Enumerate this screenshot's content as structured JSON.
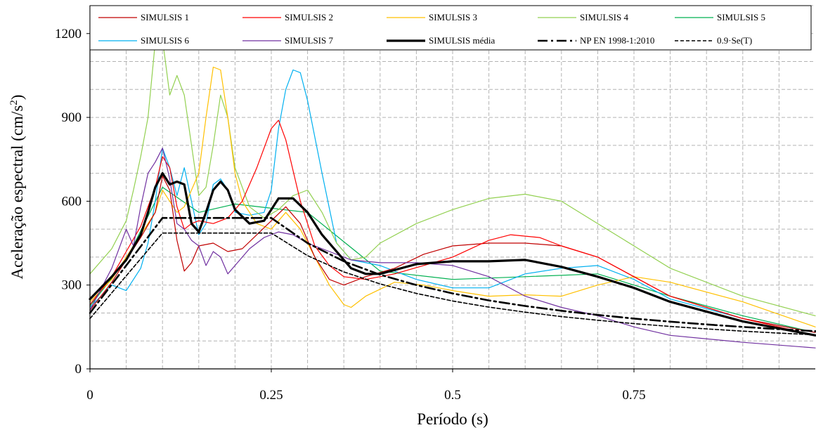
{
  "chart_data": {
    "type": "line",
    "xlabel": "Período (s)",
    "ylabel": "Aceleração espectral (cm/s²)",
    "xlim": [
      0,
      1.0
    ],
    "ylim": [
      0,
      1300
    ],
    "x_ticks": [
      0,
      0.25,
      0.5,
      0.75
    ],
    "x_tick_labels": [
      "0",
      "0.25",
      "0.5",
      "0.75"
    ],
    "y_ticks": [
      0,
      300,
      600,
      900,
      1200
    ],
    "y_tick_labels": [
      "0",
      "300",
      "600",
      "900",
      "1200"
    ],
    "grid": true,
    "legend_position": "top",
    "series": [
      {
        "name": "SIMULSIS 1",
        "color": "#c00000",
        "width": 1.2,
        "dash": "",
        "x": [
          0,
          0.03,
          0.05,
          0.07,
          0.09,
          0.1,
          0.11,
          0.12,
          0.13,
          0.14,
          0.15,
          0.17,
          0.19,
          0.21,
          0.23,
          0.25,
          0.27,
          0.29,
          0.31,
          0.33,
          0.35,
          0.38,
          0.42,
          0.46,
          0.5,
          0.55,
          0.6,
          0.65,
          0.7,
          0.75,
          0.8,
          0.9,
          1.0
        ],
        "y": [
          210,
          310,
          390,
          470,
          560,
          690,
          640,
          460,
          350,
          380,
          440,
          450,
          420,
          430,
          480,
          530,
          580,
          520,
          400,
          320,
          300,
          330,
          360,
          410,
          440,
          450,
          450,
          440,
          400,
          330,
          260,
          180,
          130
        ]
      },
      {
        "name": "SIMULSIS 2",
        "color": "#ff0000",
        "width": 1.2,
        "dash": "",
        "x": [
          0,
          0.03,
          0.05,
          0.07,
          0.09,
          0.1,
          0.11,
          0.12,
          0.13,
          0.14,
          0.15,
          0.17,
          0.19,
          0.21,
          0.23,
          0.25,
          0.26,
          0.27,
          0.29,
          0.31,
          0.33,
          0.35,
          0.38,
          0.42,
          0.46,
          0.5,
          0.55,
          0.58,
          0.62,
          0.65,
          0.7,
          0.75,
          0.8,
          0.9,
          1.0
        ],
        "y": [
          230,
          330,
          420,
          510,
          650,
          760,
          720,
          580,
          500,
          520,
          530,
          520,
          540,
          600,
          720,
          860,
          890,
          820,
          600,
          440,
          370,
          330,
          320,
          340,
          370,
          400,
          460,
          480,
          470,
          440,
          400,
          330,
          260,
          180,
          120
        ]
      },
      {
        "name": "SIMULSIS 3",
        "color": "#ffc000",
        "width": 1.2,
        "dash": "",
        "x": [
          0,
          0.03,
          0.05,
          0.07,
          0.09,
          0.1,
          0.11,
          0.12,
          0.13,
          0.15,
          0.16,
          0.17,
          0.18,
          0.19,
          0.2,
          0.21,
          0.23,
          0.25,
          0.27,
          0.29,
          0.31,
          0.33,
          0.35,
          0.36,
          0.38,
          0.42,
          0.46,
          0.5,
          0.55,
          0.6,
          0.65,
          0.7,
          0.75,
          0.8,
          0.9,
          1.0
        ],
        "y": [
          240,
          320,
          400,
          480,
          560,
          640,
          600,
          560,
          580,
          700,
          900,
          1080,
          1070,
          900,
          700,
          600,
          520,
          500,
          560,
          500,
          400,
          300,
          230,
          220,
          260,
          310,
          300,
          280,
          260,
          265,
          260,
          300,
          330,
          310,
          240,
          150
        ]
      },
      {
        "name": "SIMULSIS 4",
        "color": "#92d050",
        "width": 1.2,
        "dash": "",
        "x": [
          0,
          0.03,
          0.05,
          0.06,
          0.07,
          0.08,
          0.09,
          0.095,
          0.1,
          0.11,
          0.12,
          0.13,
          0.14,
          0.15,
          0.16,
          0.17,
          0.18,
          0.19,
          0.2,
          0.22,
          0.24,
          0.26,
          0.28,
          0.3,
          0.32,
          0.34,
          0.36,
          0.38,
          0.4,
          0.45,
          0.5,
          0.55,
          0.6,
          0.65,
          0.7,
          0.75,
          0.8,
          0.9,
          1.0
        ],
        "y": [
          340,
          430,
          530,
          640,
          760,
          900,
          1170,
          1200,
          1180,
          980,
          1050,
          980,
          800,
          620,
          650,
          800,
          980,
          900,
          720,
          580,
          540,
          570,
          620,
          640,
          560,
          450,
          390,
          400,
          450,
          520,
          570,
          610,
          625,
          600,
          520,
          440,
          360,
          260,
          190
        ]
      },
      {
        "name": "SIMULSIS 5",
        "color": "#00b050",
        "width": 1.2,
        "dash": "",
        "x": [
          0,
          0.05,
          0.1,
          0.15,
          0.2,
          0.3,
          0.4,
          0.5,
          0.6,
          0.7,
          0.8,
          0.9,
          1.0
        ],
        "y": [
          225,
          390,
          650,
          560,
          590,
          560,
          350,
          320,
          330,
          340,
          260,
          190,
          130
        ]
      },
      {
        "name": "SIMULSIS 6",
        "color": "#00b0f0",
        "width": 1.2,
        "dash": "",
        "x": [
          0,
          0.03,
          0.05,
          0.07,
          0.08,
          0.09,
          0.1,
          0.11,
          0.12,
          0.13,
          0.14,
          0.15,
          0.16,
          0.17,
          0.18,
          0.19,
          0.2,
          0.22,
          0.24,
          0.25,
          0.26,
          0.27,
          0.28,
          0.29,
          0.3,
          0.32,
          0.34,
          0.36,
          0.4,
          0.45,
          0.5,
          0.55,
          0.6,
          0.65,
          0.7,
          0.75,
          0.8,
          0.9,
          1.0
        ],
        "y": [
          220,
          300,
          280,
          360,
          450,
          600,
          790,
          720,
          620,
          720,
          600,
          480,
          520,
          660,
          680,
          640,
          560,
          550,
          560,
          640,
          860,
          1000,
          1070,
          1060,
          960,
          700,
          450,
          390,
          370,
          320,
          290,
          290,
          340,
          360,
          370,
          320,
          250,
          180,
          130
        ]
      },
      {
        "name": "SIMULSIS 7",
        "color": "#7030a0",
        "width": 1.2,
        "dash": "",
        "x": [
          0,
          0.03,
          0.05,
          0.06,
          0.07,
          0.08,
          0.09,
          0.1,
          0.11,
          0.12,
          0.13,
          0.14,
          0.15,
          0.16,
          0.17,
          0.18,
          0.19,
          0.2,
          0.22,
          0.24,
          0.26,
          0.28,
          0.3,
          0.33,
          0.36,
          0.4,
          0.45,
          0.5,
          0.55,
          0.6,
          0.65,
          0.7,
          0.75,
          0.8,
          0.9,
          1.0
        ],
        "y": [
          210,
          360,
          500,
          440,
          580,
          700,
          740,
          790,
          680,
          520,
          500,
          460,
          440,
          370,
          420,
          400,
          340,
          370,
          430,
          470,
          490,
          480,
          450,
          420,
          390,
          380,
          380,
          370,
          330,
          260,
          220,
          190,
          150,
          120,
          95,
          75
        ]
      },
      {
        "name": "SIMULSIS média",
        "color": "#000000",
        "width": 3.2,
        "dash": "",
        "x": [
          0,
          0.03,
          0.05,
          0.07,
          0.08,
          0.09,
          0.1,
          0.11,
          0.12,
          0.13,
          0.14,
          0.15,
          0.16,
          0.17,
          0.18,
          0.19,
          0.2,
          0.22,
          0.24,
          0.26,
          0.28,
          0.3,
          0.32,
          0.34,
          0.36,
          0.38,
          0.4,
          0.45,
          0.5,
          0.55,
          0.6,
          0.65,
          0.7,
          0.75,
          0.8,
          0.9,
          1.0
        ],
        "y": [
          250,
          330,
          390,
          480,
          560,
          650,
          700,
          660,
          670,
          660,
          520,
          490,
          560,
          640,
          670,
          640,
          570,
          520,
          530,
          610,
          610,
          560,
          480,
          420,
          360,
          340,
          340,
          375,
          385,
          385,
          390,
          365,
          330,
          290,
          240,
          170,
          120
        ]
      },
      {
        "name": "NP EN 1998-1:2010",
        "color": "#000000",
        "width": 2.6,
        "dash": "14,5,3,5",
        "x": [
          0,
          0.1,
          0.25,
          0.3,
          0.35,
          0.4,
          0.45,
          0.5,
          0.55,
          0.6,
          0.65,
          0.7,
          0.75,
          0.8,
          0.85,
          0.9,
          0.95,
          1.0
        ],
        "y": [
          200,
          540,
          540,
          450,
          385,
          337,
          300,
          270,
          245,
          225,
          208,
          193,
          180,
          169,
          159,
          150,
          142,
          135
        ]
      },
      {
        "name": "0.9·Se(T)",
        "color": "#000000",
        "width": 1.6,
        "dash": "5,3",
        "x": [
          0,
          0.1,
          0.25,
          0.3,
          0.35,
          0.4,
          0.45,
          0.5,
          0.55,
          0.6,
          0.65,
          0.7,
          0.75,
          0.8,
          0.85,
          0.9,
          0.95,
          1.0
        ],
        "y": [
          180,
          486,
          486,
          405,
          347,
          304,
          270,
          243,
          221,
          203,
          187,
          174,
          162,
          152,
          143,
          135,
          128,
          122
        ]
      }
    ]
  }
}
